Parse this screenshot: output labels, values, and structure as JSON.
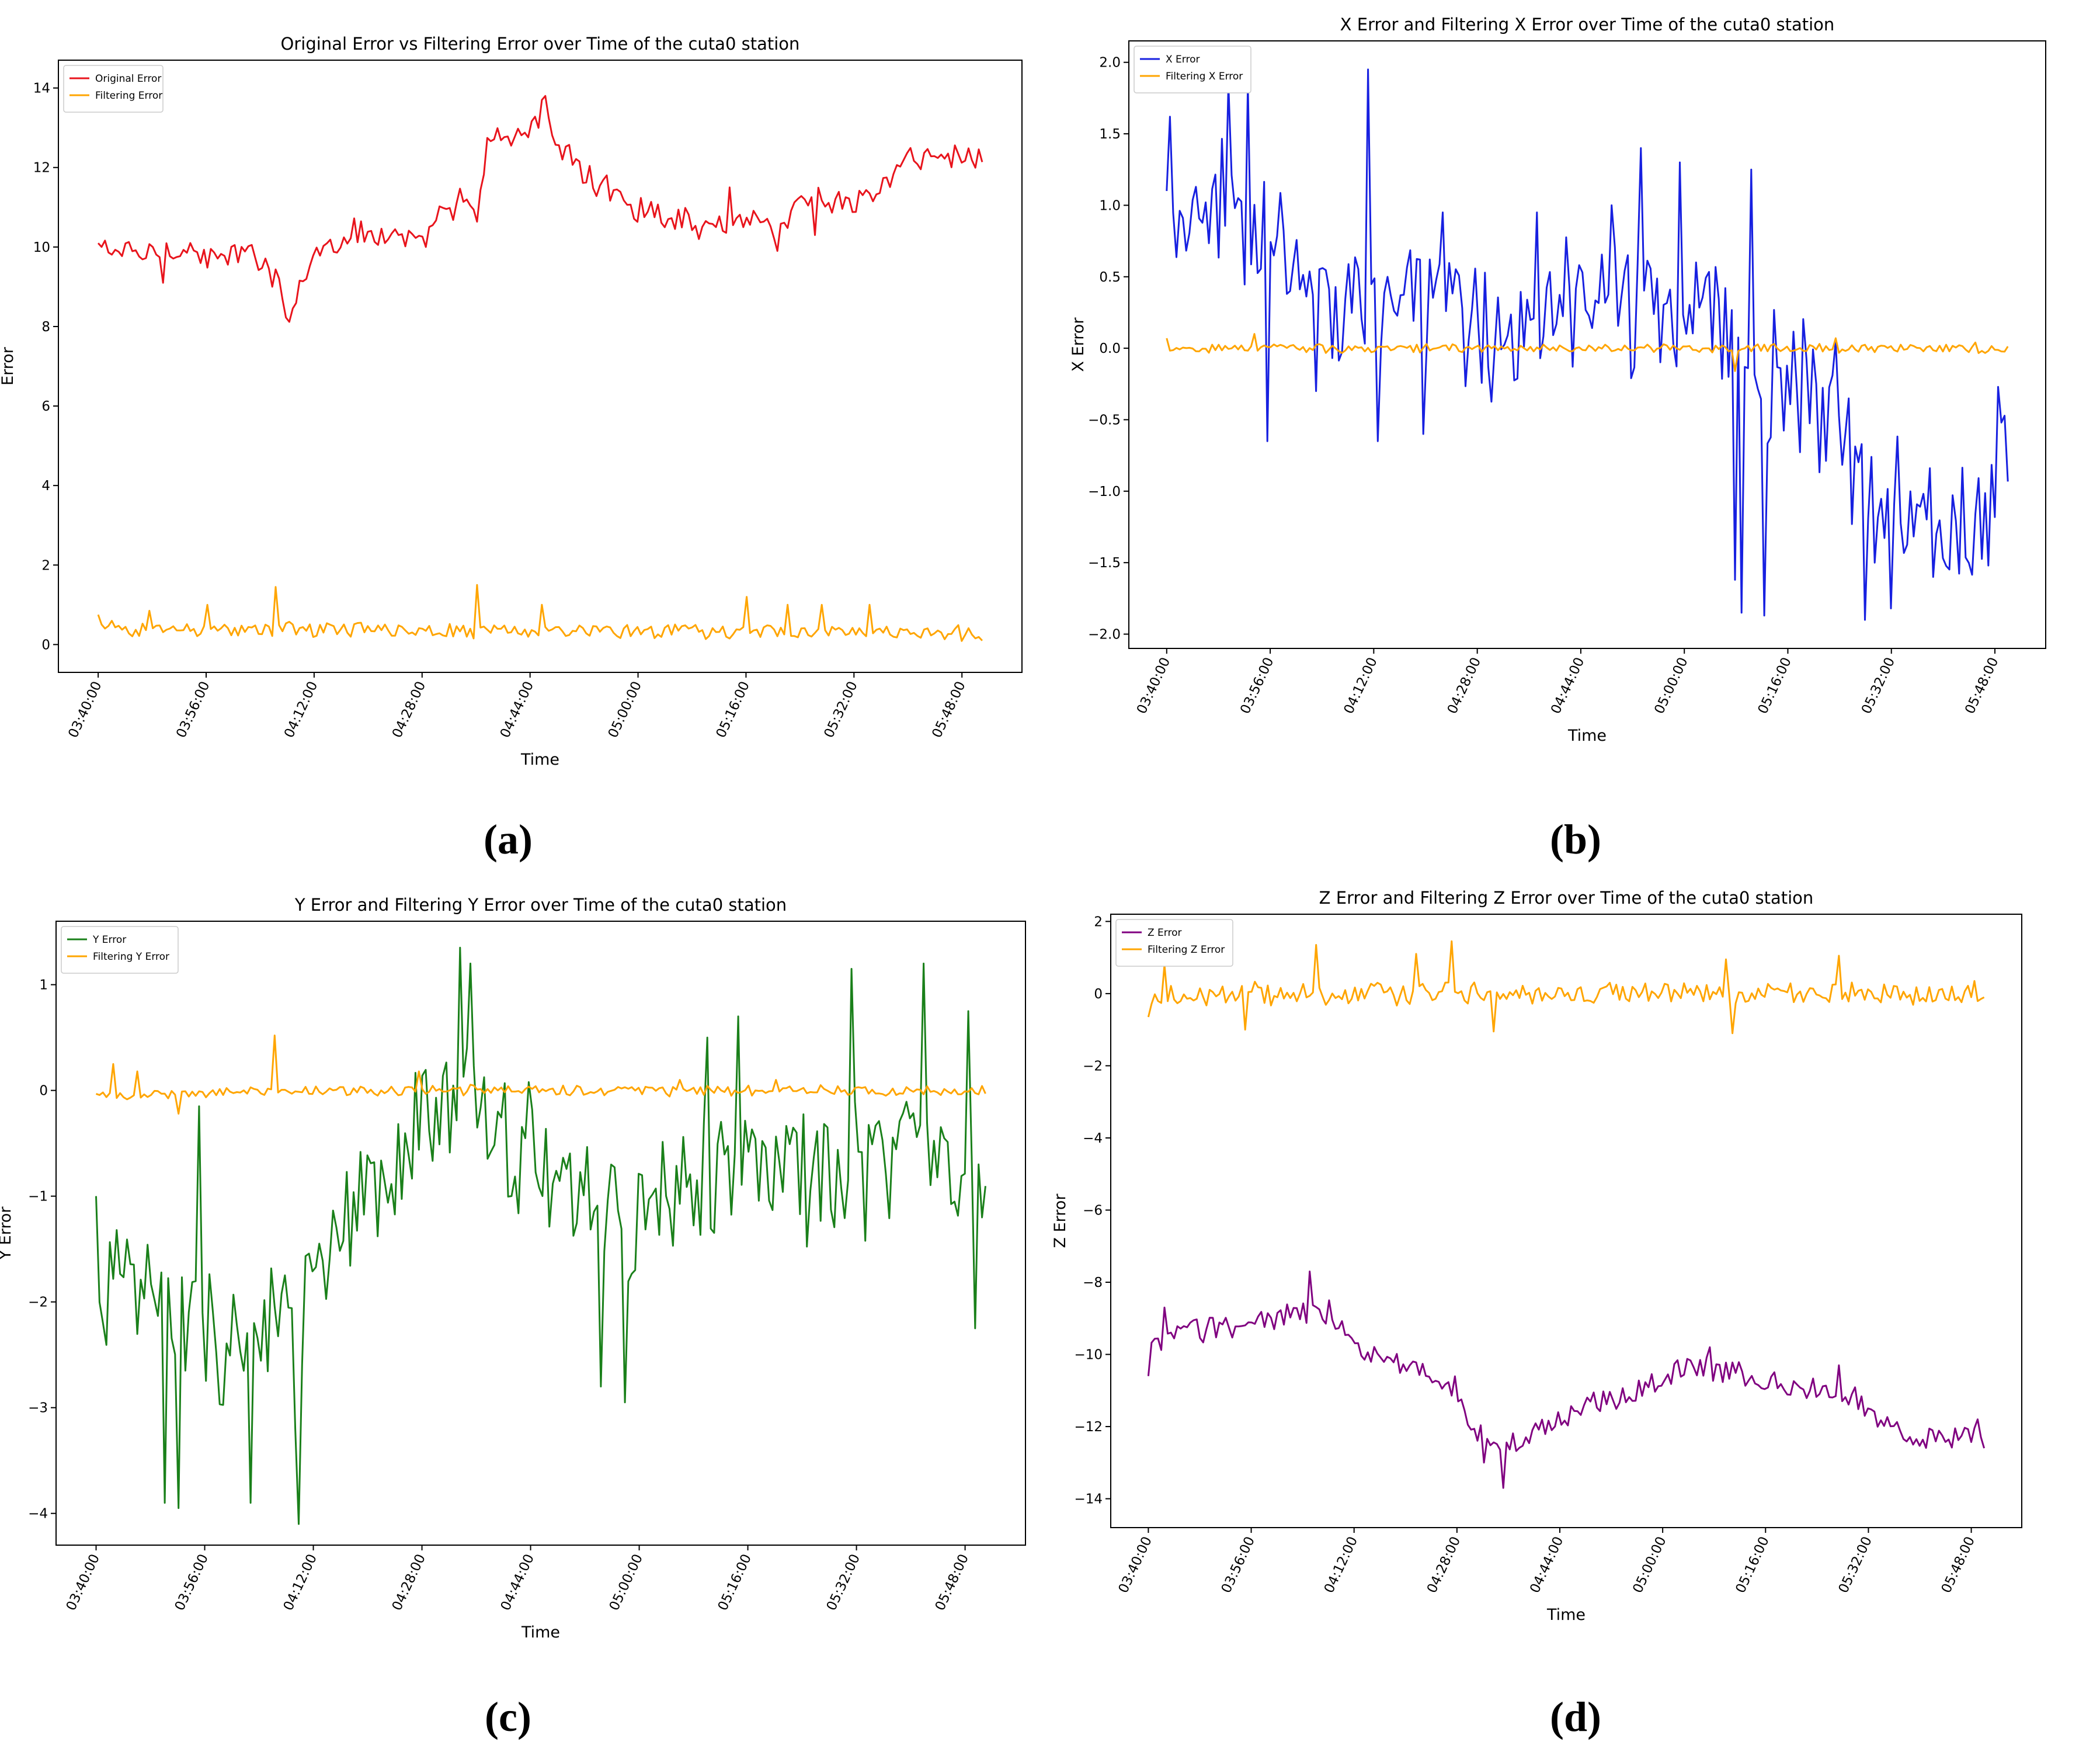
{
  "figure": {
    "sub_labels": [
      "(a)",
      "(b)",
      "(c)",
      "(d)"
    ]
  },
  "chart_data": [
    {
      "type": "line",
      "title": "Original Error vs Filtering Error over Time of the cuta0 station",
      "xlabel": "Time",
      "ylabel": "Error",
      "x_ticks": [
        "03:40:00",
        "03:56:00",
        "04:12:00",
        "04:28:00",
        "04:44:00",
        "05:00:00",
        "05:16:00",
        "05:32:00",
        "05:48:00"
      ],
      "x_range_minutes": [
        220,
        351
      ],
      "ylim": [
        -0.7,
        14.7
      ],
      "y_ticks": [
        0,
        2,
        4,
        6,
        8,
        10,
        12,
        14
      ],
      "y_tick_labels": [
        "0",
        "2",
        "4",
        "6",
        "8",
        "10",
        "12",
        "14"
      ],
      "legend": "top-left",
      "series": [
        {
          "name": "Original Error",
          "color": "#e8141c",
          "anchors": [
            [
              220,
              10.0
            ],
            [
              226,
              9.8
            ],
            [
              232,
              10.0
            ],
            [
              237,
              9.7
            ],
            [
              242,
              9.8
            ],
            [
              246,
              9.6
            ],
            [
              248,
              8.3
            ],
            [
              252,
              9.8
            ],
            [
              258,
              10.4
            ],
            [
              262,
              10.3
            ],
            [
              266,
              10.2
            ],
            [
              268,
              9.9
            ],
            [
              270,
              10.7
            ],
            [
              274,
              11.2
            ],
            [
              276,
              10.6
            ],
            [
              278,
              12.9
            ],
            [
              282,
              12.7
            ],
            [
              284,
              13.0
            ],
            [
              286,
              13.2
            ],
            [
              290,
              12.2
            ],
            [
              293,
              11.7
            ],
            [
              300,
              11.0
            ],
            [
              305,
              10.8
            ],
            [
              310,
              10.5
            ],
            [
              314,
              10.6
            ],
            [
              318,
              10.8
            ],
            [
              320,
              10.4
            ],
            [
              324,
              11.1
            ],
            [
              328,
              11.3
            ],
            [
              331,
              11.0
            ],
            [
              336,
              11.5
            ],
            [
              340,
              12.2
            ],
            [
              346,
              12.3
            ],
            [
              351,
              12.3
            ]
          ],
          "spikes": [
            [
              229.5,
              9.1
            ],
            [
              245.6,
              9.0
            ],
            [
              268.5,
              10.0
            ],
            [
              285.7,
              13.7
            ],
            [
              286.5,
              13.8
            ],
            [
              288.6,
              12.2
            ],
            [
              309,
              10.2
            ],
            [
              311.5,
              10.5
            ],
            [
              313.5,
              11.5
            ],
            [
              320.7,
              9.9
            ],
            [
              326,
              10.3
            ]
          ],
          "noise": 0.4,
          "count": 260
        },
        {
          "name": "Filtering Error",
          "color": "#ffa500",
          "anchors": [
            [
              220,
              0.4
            ],
            [
              350,
              0.3
            ]
          ],
          "spikes": [
            [
              220.1,
              0.75
            ],
            [
              227.5,
              0.85
            ],
            [
              236,
              1.0
            ],
            [
              246.3,
              1.45
            ],
            [
              276.2,
              1.5
            ],
            [
              286,
              1.0
            ],
            [
              316.3,
              1.2
            ],
            [
              322,
              1.0
            ],
            [
              327,
              1.0
            ],
            [
              334.5,
              1.0
            ],
            [
              351,
              0.1
            ]
          ],
          "noise": 0.22,
          "min": 0.0,
          "count": 260
        }
      ]
    },
    {
      "type": "line",
      "title": "X Error and Filtering X Error over Time of the cuta0 station",
      "xlabel": "Time",
      "ylabel": "X Error",
      "x_ticks": [
        "03:40:00",
        "03:56:00",
        "04:12:00",
        "04:28:00",
        "04:44:00",
        "05:00:00",
        "05:16:00",
        "05:32:00",
        "05:48:00"
      ],
      "x_range_minutes": [
        220,
        350
      ],
      "ylim": [
        -2.1,
        2.15
      ],
      "y_ticks": [
        -2.0,
        -1.5,
        -1.0,
        -0.5,
        0.0,
        0.5,
        1.0,
        1.5,
        2.0
      ],
      "y_tick_labels": [
        "−2.0",
        "−1.5",
        "−1.0",
        "−0.5",
        "0.0",
        "0.5",
        "1.0",
        "1.5",
        "2.0"
      ],
      "legend": "top-left",
      "series": [
        {
          "name": "X Error",
          "color": "#1720e0",
          "anchors": [
            [
              220,
              1.0
            ],
            [
              226,
              0.7
            ],
            [
              229,
              1.1
            ],
            [
              236,
              0.7
            ],
            [
              244,
              0.3
            ],
            [
              254,
              0.4
            ],
            [
              264,
              0.2
            ],
            [
              274,
              0.1
            ],
            [
              284,
              0.4
            ],
            [
              294,
              0.3
            ],
            [
              304,
              0.3
            ],
            [
              308,
              0.2
            ],
            [
              312,
              -0.3
            ],
            [
              316,
              -0.1
            ],
            [
              320,
              -0.5
            ],
            [
              328,
              -0.9
            ],
            [
              336,
              -1.0
            ],
            [
              342,
              -1.2
            ],
            [
              348,
              -1.0
            ],
            [
              350,
              -0.5
            ]
          ],
          "spikes": [
            [
              220.1,
              1.1
            ],
            [
              220.6,
              1.62
            ],
            [
              229.7,
              1.85
            ],
            [
              232.5,
              1.85
            ],
            [
              235.4,
              1.7
            ],
            [
              235.8,
              -0.65
            ],
            [
              243.1,
              -0.3
            ],
            [
              251.1,
              1.95
            ],
            [
              252.7,
              -0.65
            ],
            [
              259.6,
              -0.6
            ],
            [
              262.8,
              0.95
            ],
            [
              277,
              0.95
            ],
            [
              289,
              1.0
            ],
            [
              293.5,
              1.4
            ],
            [
              299.5,
              1.3
            ],
            [
              302,
              0.6
            ],
            [
              306.6,
              -0.2
            ],
            [
              307.8,
              -1.62
            ],
            [
              308.6,
              -1.85
            ],
            [
              310.2,
              1.25
            ],
            [
              312.4,
              -1.87
            ],
            [
              323.2,
              0.05
            ],
            [
              328.1,
              -1.9
            ],
            [
              329.2,
              -1.5
            ],
            [
              332.1,
              -1.82
            ],
            [
              338.7,
              -1.6
            ],
            [
              346.8,
              -1.52
            ],
            [
              348.4,
              -0.27
            ],
            [
              349.1,
              -0.52
            ]
          ],
          "noise": 0.55,
          "count": 260
        },
        {
          "name": "Filtering X Error",
          "color": "#ffa500",
          "anchors": [
            [
              220,
              0.0
            ],
            [
              350,
              0.0
            ]
          ],
          "spikes": [
            [
              220,
              0.07
            ],
            [
              233.4,
              0.1
            ],
            [
              307.7,
              -0.16
            ],
            [
              323.2,
              0.07
            ],
            [
              345,
              0.04
            ]
          ],
          "noise": 0.035,
          "count": 260
        }
      ]
    },
    {
      "type": "line",
      "title": "Y Error and Filtering Y Error over Time of the cuta0 station",
      "xlabel": "Time",
      "ylabel": "Y Error",
      "x_ticks": [
        "03:40:00",
        "03:56:00",
        "04:12:00",
        "04:28:00",
        "04:44:00",
        "05:00:00",
        "05:16:00",
        "05:32:00",
        "05:48:00"
      ],
      "x_range_minutes": [
        220,
        351
      ],
      "ylim": [
        -4.3,
        1.6
      ],
      "y_ticks": [
        -4,
        -3,
        -2,
        -1,
        0,
        1
      ],
      "y_tick_labels": [
        "−4",
        "−3",
        "−2",
        "−1",
        "0",
        "1"
      ],
      "legend": "top-left",
      "series": [
        {
          "name": "Y Error",
          "color": "#1a801a",
          "anchors": [
            [
              220,
              -1.8
            ],
            [
              228,
              -1.9
            ],
            [
              236,
              -2.3
            ],
            [
              244,
              -2.4
            ],
            [
              250,
              -2.0
            ],
            [
              256,
              -1.5
            ],
            [
              262,
              -1.0
            ],
            [
              268,
              -0.3
            ],
            [
              276,
              -0.1
            ],
            [
              282,
              -0.5
            ],
            [
              290,
              -1.0
            ],
            [
              300,
              -1.2
            ],
            [
              310,
              -0.8
            ],
            [
              320,
              -0.7
            ],
            [
              330,
              -0.9
            ],
            [
              340,
              -0.5
            ],
            [
              348,
              -0.9
            ],
            [
              351,
              -1.4
            ]
          ],
          "spikes": [
            [
              220.1,
              -1.0
            ],
            [
              230,
              -3.9
            ],
            [
              232.3,
              -3.95
            ],
            [
              235.4,
              -0.15
            ],
            [
              243,
              -3.9
            ],
            [
              249.2,
              -3.2
            ],
            [
              249.9,
              -4.1
            ],
            [
              273.6,
              1.35
            ],
            [
              274.4,
              0.4
            ],
            [
              275.1,
              1.2
            ],
            [
              294.2,
              -2.8
            ],
            [
              297.8,
              -2.95
            ],
            [
              310.2,
              0.5
            ],
            [
              314.4,
              0.7
            ],
            [
              331.2,
              1.15
            ],
            [
              341.7,
              1.2
            ],
            [
              348.6,
              0.75
            ],
            [
              349.7,
              -2.25
            ],
            [
              350.2,
              -0.7
            ]
          ],
          "noise": 0.75,
          "count": 260
        },
        {
          "name": "Filtering Y Error",
          "color": "#ffa500",
          "anchors": [
            [
              220,
              -0.05
            ],
            [
              240,
              -0.02
            ],
            [
              260,
              0.0
            ],
            [
              300,
              0.0
            ],
            [
              351,
              0.0
            ]
          ],
          "spikes": [
            [
              222.4,
              0.25
            ],
            [
              226,
              0.18
            ],
            [
              232.1,
              -0.22
            ],
            [
              246.3,
              0.52
            ],
            [
              267.3,
              0.18
            ],
            [
              306,
              0.1
            ],
            [
              320,
              0.1
            ],
            [
              351,
              -0.03
            ]
          ],
          "noise": 0.06,
          "count": 260
        }
      ]
    },
    {
      "type": "line",
      "title": "Z Error and Filtering Z Error over Time of the cuta0 station",
      "xlabel": "Time",
      "ylabel": "Z Error",
      "x_ticks": [
        "03:40:00",
        "03:56:00",
        "04:12:00",
        "04:28:00",
        "04:44:00",
        "05:00:00",
        "05:16:00",
        "05:32:00",
        "05:48:00"
      ],
      "x_range_minutes": [
        220,
        350
      ],
      "ylim": [
        -14.8,
        2.2
      ],
      "y_ticks": [
        -14,
        -12,
        -10,
        -8,
        -6,
        -4,
        -2,
        0,
        2
      ],
      "y_tick_labels": [
        "−14",
        "−12",
        "−10",
        "−8",
        "−6",
        "−4",
        "−2",
        "0",
        "2"
      ],
      "legend": "top-left",
      "series": [
        {
          "name": "Z Error",
          "color": "#800080",
          "anchors": [
            [
              220,
              -9.9
            ],
            [
              226,
              -9.3
            ],
            [
              234,
              -9.2
            ],
            [
              240,
              -9.0
            ],
            [
              246,
              -8.8
            ],
            [
              252,
              -9.7
            ],
            [
              258,
              -10.3
            ],
            [
              264,
              -10.5
            ],
            [
              268,
              -11.0
            ],
            [
              270,
              -12.0
            ],
            [
              276,
              -12.6
            ],
            [
              282,
              -12.0
            ],
            [
              290,
              -11.3
            ],
            [
              296,
              -11.0
            ],
            [
              304,
              -10.4
            ],
            [
              312,
              -10.5
            ],
            [
              318,
              -10.8
            ],
            [
              324,
              -11.0
            ],
            [
              330,
              -11.2
            ],
            [
              334,
              -12.0
            ],
            [
              340,
              -12.3
            ],
            [
              350,
              -12.3
            ]
          ],
          "spikes": [
            [
              220.1,
              -10.6
            ],
            [
              222.5,
              -8.7
            ],
            [
              245,
              -7.7
            ],
            [
              248,
              -8.5
            ],
            [
              272.2,
              -13.0
            ],
            [
              275.2,
              -13.7
            ],
            [
              307.5,
              -9.8
            ],
            [
              327.5,
              -10.3
            ],
            [
              349.1,
              -11.8
            ],
            [
              349.8,
              -12.6
            ]
          ],
          "noise": 0.42,
          "count": 260
        },
        {
          "name": "Filtering Z Error",
          "color": "#ffa500",
          "anchors": [
            [
              220,
              0.0
            ],
            [
              350,
              0.0
            ]
          ],
          "spikes": [
            [
              220.1,
              -0.65
            ],
            [
              222.5,
              0.8
            ],
            [
              235.2,
              -1.0
            ],
            [
              246.3,
              1.35
            ],
            [
              261.5,
              1.1
            ],
            [
              267,
              1.45
            ],
            [
              273.5,
              -1.05
            ],
            [
              310,
              0.95
            ],
            [
              310.9,
              -1.1
            ],
            [
              327.5,
              1.05
            ],
            [
              348.5,
              0.35
            ],
            [
              349.6,
              -0.15
            ]
          ],
          "noise": 0.35,
          "count": 260
        }
      ]
    }
  ]
}
